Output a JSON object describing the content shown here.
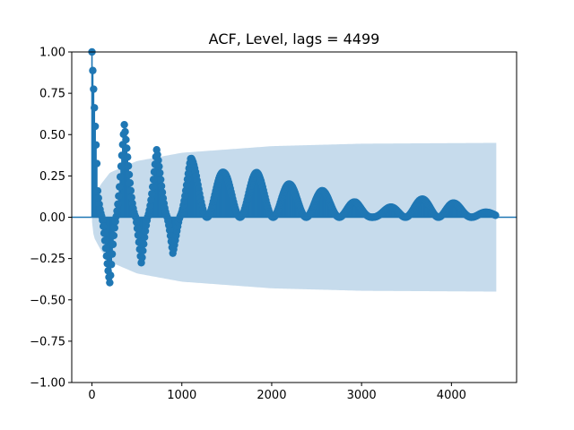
{
  "chart_data": {
    "type": "stem",
    "title": "ACF, Level, lags = 4499",
    "xlabel": "",
    "ylabel": "",
    "xlim": [
      -225,
      4725
    ],
    "ylim": [
      -1.0,
      1.0
    ],
    "xticks": [
      0,
      1000,
      2000,
      3000,
      4000
    ],
    "xtick_labels": [
      "0",
      "1000",
      "2000",
      "3000",
      "4000"
    ],
    "yticks": [
      -1.0,
      -0.75,
      -0.5,
      -0.25,
      0.0,
      0.25,
      0.5,
      0.75,
      1.0
    ],
    "ytick_labels": [
      "−1.00",
      "−0.75",
      "−0.50",
      "−0.25",
      "0.00",
      "0.25",
      "0.50",
      "0.75",
      "1.00"
    ],
    "grid": false,
    "legend": false,
    "max_lag": 4499,
    "acf_shape": {
      "envelope_points": [
        [
          0,
          1.0
        ],
        [
          60,
          0.55
        ],
        [
          120,
          0.25
        ],
        [
          200,
          0.42
        ],
        [
          360,
          0.56
        ],
        [
          500,
          0.28
        ],
        [
          720,
          0.41
        ],
        [
          1000,
          0.36
        ],
        [
          1100,
          0.36
        ],
        [
          1470,
          0.27
        ],
        [
          1840,
          0.27
        ],
        [
          2200,
          0.2
        ],
        [
          2570,
          0.17
        ],
        [
          2940,
          0.1
        ],
        [
          3120,
          0.05
        ],
        [
          3500,
          0.12
        ],
        [
          3870,
          0.13
        ],
        [
          4200,
          0.06
        ],
        [
          4499,
          0.03
        ]
      ],
      "cycle_points": [
        [
          0,
          1.0,
          0
        ],
        [
          60,
          0.75,
          0.25
        ],
        [
          200,
          0.35,
          -0.42
        ],
        [
          360,
          0.3,
          0.56
        ],
        [
          550,
          0.25,
          -0.28
        ],
        [
          720,
          0.28,
          0.41
        ],
        [
          900,
          0.25,
          -0.22
        ],
        [
          1100,
          0.25,
          0.36
        ],
        [
          1470,
          0.25,
          0.27
        ],
        [
          1840,
          0.22,
          0.27
        ],
        [
          2200,
          0.22,
          0.2
        ],
        [
          2570,
          0.22,
          0.16
        ],
        [
          2940,
          0.2,
          0.09
        ],
        [
          3120,
          0.15,
          0.02
        ],
        [
          3500,
          0.2,
          0.1
        ],
        [
          3870,
          0.2,
          0.12
        ],
        [
          4200,
          0.12,
          0.05
        ],
        [
          4499,
          0.1,
          0.02
        ]
      ],
      "period": 368
    },
    "confidence_band": {
      "x_start": 1,
      "x_end": 4499,
      "points": [
        [
          1,
          0.03
        ],
        [
          20,
          0.12
        ],
        [
          100,
          0.2
        ],
        [
          200,
          0.27
        ],
        [
          500,
          0.34
        ],
        [
          1000,
          0.39
        ],
        [
          2000,
          0.43
        ],
        [
          3000,
          0.445
        ],
        [
          4499,
          0.45
        ]
      ]
    },
    "colors": {
      "stem": "#1f77b4",
      "marker": "#1f77b4",
      "band": "#c6dbec",
      "zero_line": "#1f77b4",
      "axes": "#000000",
      "background": "#ffffff"
    }
  }
}
